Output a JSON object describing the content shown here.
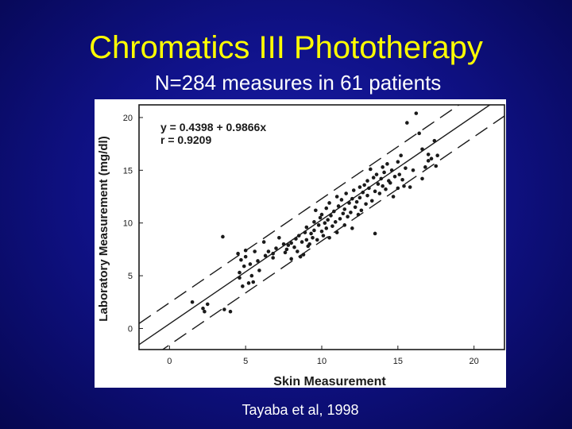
{
  "slide": {
    "title": "Chromatics III Phototherapy",
    "subtitle": "N=284 measures in 61 patients",
    "citation": "Tayaba et al, 1998"
  },
  "colors": {
    "background": "#10128a",
    "title": "#ffff00",
    "text": "#ffffff",
    "plot_ink": "#1a1a1a"
  },
  "chart_data": {
    "type": "scatter",
    "xlabel": "Skin Measurement",
    "ylabel": "Laboratory Measurement (mg/dl)",
    "xlim": [
      -2,
      22
    ],
    "ylim": [
      -2,
      21.2
    ],
    "xticks": [
      0,
      5,
      10,
      15,
      20
    ],
    "yticks": [
      0,
      5,
      10,
      15,
      20
    ],
    "grid": false,
    "annotations": [
      "y = 0.4398 + 0.9866x",
      "r = 0.9209"
    ],
    "regression": {
      "intercept": 0.4398,
      "slope": 0.9866,
      "band_offset": 2.0
    },
    "series": [
      {
        "points": [
          [
            1.5,
            2.5
          ],
          [
            2.2,
            1.9
          ],
          [
            2.3,
            1.6
          ],
          [
            2.5,
            2.3
          ],
          [
            3.5,
            8.7
          ],
          [
            3.6,
            1.8
          ],
          [
            4.0,
            1.6
          ],
          [
            4.5,
            7.1
          ],
          [
            4.6,
            5.3
          ],
          [
            4.6,
            4.8
          ],
          [
            4.7,
            6.5
          ],
          [
            4.8,
            4.0
          ],
          [
            4.9,
            5.9
          ],
          [
            5.0,
            6.8
          ],
          [
            5.0,
            7.4
          ],
          [
            5.2,
            4.3
          ],
          [
            5.3,
            6.1
          ],
          [
            5.4,
            5.0
          ],
          [
            5.5,
            4.4
          ],
          [
            5.6,
            7.3
          ],
          [
            5.8,
            6.4
          ],
          [
            5.9,
            5.5
          ],
          [
            6.2,
            8.2
          ],
          [
            6.3,
            6.9
          ],
          [
            6.5,
            7.3
          ],
          [
            6.8,
            7.1
          ],
          [
            6.8,
            6.7
          ],
          [
            7.0,
            7.6
          ],
          [
            7.2,
            8.6
          ],
          [
            7.5,
            8.0
          ],
          [
            7.6,
            7.2
          ],
          [
            7.7,
            7.5
          ],
          [
            7.8,
            7.9
          ],
          [
            8.0,
            8.1
          ],
          [
            8.0,
            6.6
          ],
          [
            8.2,
            7.7
          ],
          [
            8.3,
            8.5
          ],
          [
            8.4,
            7.3
          ],
          [
            8.5,
            8.8
          ],
          [
            8.6,
            6.8
          ],
          [
            8.7,
            8.2
          ],
          [
            8.8,
            7.0
          ],
          [
            8.9,
            9.1
          ],
          [
            9.0,
            8.4
          ],
          [
            9.0,
            9.6
          ],
          [
            9.1,
            7.8
          ],
          [
            9.2,
            8.0
          ],
          [
            9.3,
            9.0
          ],
          [
            9.4,
            8.6
          ],
          [
            9.5,
            10.1
          ],
          [
            9.5,
            9.3
          ],
          [
            9.6,
            11.2
          ],
          [
            9.7,
            8.4
          ],
          [
            9.8,
            9.8
          ],
          [
            9.9,
            10.5
          ],
          [
            10.0,
            9.2
          ],
          [
            10.0,
            10.8
          ],
          [
            10.1,
            8.8
          ],
          [
            10.2,
            10.0
          ],
          [
            10.3,
            11.4
          ],
          [
            10.3,
            9.5
          ],
          [
            10.4,
            10.3
          ],
          [
            10.5,
            8.6
          ],
          [
            10.5,
            11.9
          ],
          [
            10.6,
            10.7
          ],
          [
            10.7,
            9.7
          ],
          [
            10.8,
            11.1
          ],
          [
            10.9,
            10.1
          ],
          [
            11.0,
            12.5
          ],
          [
            11.0,
            9.1
          ],
          [
            11.1,
            11.6
          ],
          [
            11.2,
            10.4
          ],
          [
            11.3,
            12.2
          ],
          [
            11.4,
            10.9
          ],
          [
            11.5,
            9.8
          ],
          [
            11.5,
            11.3
          ],
          [
            11.6,
            12.8
          ],
          [
            11.7,
            10.6
          ],
          [
            11.8,
            11.9
          ],
          [
            11.9,
            11.0
          ],
          [
            12.0,
            12.3
          ],
          [
            12.0,
            9.5
          ],
          [
            12.1,
            13.1
          ],
          [
            12.2,
            11.5
          ],
          [
            12.3,
            12.0
          ],
          [
            12.4,
            10.8
          ],
          [
            12.5,
            13.4
          ],
          [
            12.5,
            12.4
          ],
          [
            12.6,
            11.2
          ],
          [
            12.7,
            12.9
          ],
          [
            12.8,
            13.6
          ],
          [
            12.9,
            11.8
          ],
          [
            13.0,
            14.0
          ],
          [
            13.0,
            12.6
          ],
          [
            13.1,
            13.3
          ],
          [
            13.2,
            15.1
          ],
          [
            13.3,
            12.1
          ],
          [
            13.4,
            14.3
          ],
          [
            13.5,
            13.0
          ],
          [
            13.5,
            9.0
          ],
          [
            13.6,
            14.6
          ],
          [
            13.7,
            13.7
          ],
          [
            13.8,
            12.8
          ],
          [
            13.9,
            14.2
          ],
          [
            14.0,
            15.3
          ],
          [
            14.0,
            13.5
          ],
          [
            14.1,
            14.8
          ],
          [
            14.2,
            13.2
          ],
          [
            14.3,
            15.6
          ],
          [
            14.4,
            14.0
          ],
          [
            14.5,
            13.8
          ],
          [
            14.6,
            15.0
          ],
          [
            14.7,
            12.5
          ],
          [
            14.8,
            14.4
          ],
          [
            15.0,
            15.8
          ],
          [
            15.0,
            13.3
          ],
          [
            15.1,
            14.6
          ],
          [
            15.2,
            16.4
          ],
          [
            15.3,
            14.1
          ],
          [
            15.4,
            13.5
          ],
          [
            15.5,
            15.2
          ],
          [
            15.6,
            19.5
          ],
          [
            15.8,
            13.4
          ],
          [
            16.0,
            15.0
          ],
          [
            16.2,
            20.4
          ],
          [
            16.4,
            18.5
          ],
          [
            16.6,
            17.0
          ],
          [
            16.6,
            14.2
          ],
          [
            16.8,
            15.3
          ],
          [
            17.0,
            15.9
          ],
          [
            17.0,
            16.5
          ],
          [
            17.2,
            16.1
          ],
          [
            17.4,
            17.8
          ],
          [
            17.5,
            15.4
          ],
          [
            17.6,
            16.4
          ]
        ]
      }
    ]
  }
}
